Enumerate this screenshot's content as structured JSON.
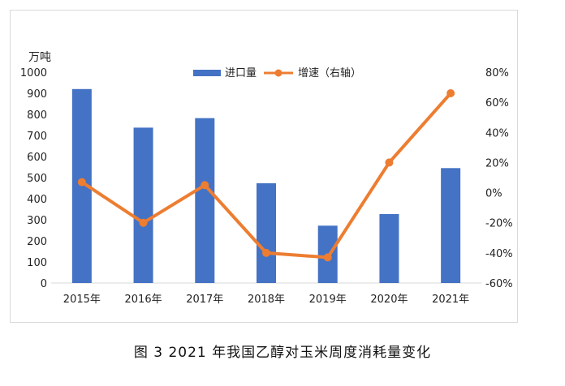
{
  "caption": "图 3  2021 年我国乙醇对玉米周度消耗量变化",
  "chart_data": {
    "type": "bar+line",
    "categories": [
      "2015年",
      "2016年",
      "2017年",
      "2018年",
      "2019年",
      "2020年",
      "2021年"
    ],
    "series": [
      {
        "name": "进口量",
        "type": "bar",
        "axis": "left",
        "color": "#4472C4",
        "values": [
          920,
          737,
          782,
          473,
          272,
          327,
          545
        ]
      },
      {
        "name": "增速（右轴）",
        "type": "line",
        "axis": "right",
        "color": "#ED7D31",
        "values": [
          7,
          -20,
          5,
          -40,
          -43,
          20,
          66
        ]
      }
    ],
    "left_axis": {
      "unit": "万吨",
      "ylim": [
        0,
        1000
      ],
      "ticks": [
        "0",
        "100",
        "200",
        "300",
        "400",
        "500",
        "600",
        "700",
        "800",
        "900",
        "1000"
      ]
    },
    "right_axis": {
      "ylim": [
        -60,
        80
      ],
      "ticks": [
        "-60%",
        "-40%",
        "-20%",
        "0%",
        "20%",
        "40%",
        "60%",
        "80%"
      ]
    },
    "legend_position": "top-center",
    "grid": false
  }
}
